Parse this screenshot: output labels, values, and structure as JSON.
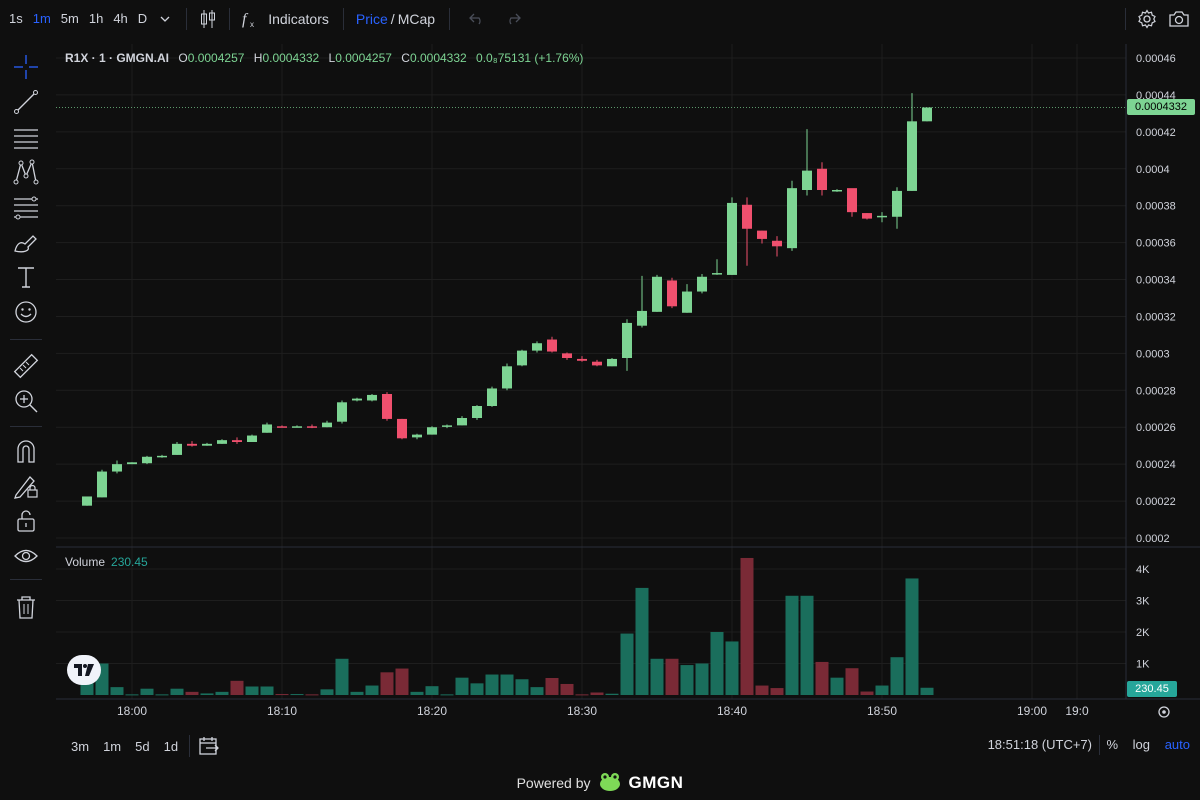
{
  "toolbar": {
    "timeframes": [
      "1s",
      "1m",
      "5m",
      "1h",
      "4h",
      "D"
    ],
    "active_timeframe": "1m",
    "indicators_label": "Indicators",
    "price_label": "Price",
    "separator": "/",
    "mcap_label": "MCap"
  },
  "legend": {
    "symbol": "R1X · 1 · GMGN.AI",
    "o_label": "O",
    "o_value": "0.0004257",
    "h_label": "H",
    "h_value": "0.0004332",
    "l_label": "L",
    "l_value": "0.0004257",
    "c_label": "C",
    "c_value": "0.0004332",
    "change": "0.0₈75131 (+1.76%)"
  },
  "volume_legend": {
    "label": "Volume",
    "value": "230.45"
  },
  "price_tag": "0.0004332",
  "volume_tag": "230.45",
  "bottom_toolbar": {
    "ranges": [
      "3m",
      "1m",
      "5d",
      "1d"
    ],
    "clock": "18:51:18 (UTC+7)",
    "percent_label": "%",
    "log_label": "log",
    "auto_label": "auto"
  },
  "footer": {
    "powered_by": "Powered by",
    "brand": "GMGN"
  },
  "colors": {
    "up": "#7dd493",
    "down": "#f0506e",
    "vol_up": "#1a6e5c",
    "vol_down": "#7a2a36",
    "grid": "#1e1e1e",
    "tag_up": "#7dd493",
    "vol_tag": "#26a69a"
  },
  "chart_data": {
    "type": "candlestick",
    "x_tick_labels": [
      "18:00",
      "18:10",
      "18:20",
      "18:30",
      "18:40",
      "18:50",
      "19:00",
      "19:0"
    ],
    "y_tick_labels": [
      "0.00046",
      "0.00044",
      "0.00042",
      "0.0004",
      "0.00038",
      "0.00036",
      "0.00034",
      "0.00032",
      "0.0003",
      "0.00028",
      "0.00026",
      "0.00024",
      "0.00022",
      "0.0002"
    ],
    "y_ticks": [
      0.00046,
      0.00044,
      0.00042,
      0.0004,
      0.00038,
      0.00036,
      0.00034,
      0.00032,
      0.0003,
      0.00028,
      0.00026,
      0.00024,
      0.00022,
      0.0002
    ],
    "vol_tick_labels": [
      "4K",
      "3K",
      "2K",
      "1K"
    ],
    "vol_ticks": [
      4000,
      3000,
      2000,
      1000
    ],
    "start_time": "17:57",
    "candles": [
      {
        "o": 0.0002175,
        "h": 0.0002225,
        "l": 0.0002175,
        "c": 0.0002225,
        "v": 400
      },
      {
        "o": 0.000222,
        "h": 0.000237,
        "l": 0.000222,
        "c": 0.000236,
        "v": 1000
      },
      {
        "o": 0.000236,
        "h": 0.000242,
        "l": 0.000235,
        "c": 0.00024,
        "v": 250
      },
      {
        "o": 0.00024,
        "h": 0.000241,
        "l": 0.00024,
        "c": 0.000241,
        "v": 20
      },
      {
        "o": 0.0002405,
        "h": 0.0002445,
        "l": 0.00024,
        "c": 0.000244,
        "v": 200
      },
      {
        "o": 0.000244,
        "h": 0.000245,
        "l": 0.0002435,
        "c": 0.0002445,
        "v": 20
      },
      {
        "o": 0.000245,
        "h": 0.000252,
        "l": 0.000245,
        "c": 0.000251,
        "v": 200
      },
      {
        "o": 0.000251,
        "h": 0.0002525,
        "l": 0.0002495,
        "c": 0.00025,
        "v": 100
      },
      {
        "o": 0.00025,
        "h": 0.0002515,
        "l": 0.00025,
        "c": 0.000251,
        "v": 50
      },
      {
        "o": 0.000251,
        "h": 0.0002535,
        "l": 0.000251,
        "c": 0.000253,
        "v": 100
      },
      {
        "o": 0.000253,
        "h": 0.0002545,
        "l": 0.000251,
        "c": 0.000252,
        "v": 450
      },
      {
        "o": 0.000252,
        "h": 0.000256,
        "l": 0.000252,
        "c": 0.0002555,
        "v": 270
      },
      {
        "o": 0.000257,
        "h": 0.0002625,
        "l": 0.000257,
        "c": 0.0002615,
        "v": 270
      },
      {
        "o": 0.0002605,
        "h": 0.000261,
        "l": 0.00026,
        "c": 0.00026,
        "v": 30
      },
      {
        "o": 0.00026,
        "h": 0.000261,
        "l": 0.00026,
        "c": 0.0002605,
        "v": 30
      },
      {
        "o": 0.0002605,
        "h": 0.0002615,
        "l": 0.0002595,
        "c": 0.00026,
        "v": 20
      },
      {
        "o": 0.00026,
        "h": 0.0002635,
        "l": 0.00026,
        "c": 0.0002625,
        "v": 180
      },
      {
        "o": 0.000263,
        "h": 0.0002745,
        "l": 0.000262,
        "c": 0.0002735,
        "v": 1150
      },
      {
        "o": 0.0002745,
        "h": 0.000276,
        "l": 0.000274,
        "c": 0.0002755,
        "v": 100
      },
      {
        "o": 0.0002745,
        "h": 0.000278,
        "l": 0.000274,
        "c": 0.0002775,
        "v": 300
      },
      {
        "o": 0.000278,
        "h": 0.000279,
        "l": 0.0002635,
        "c": 0.0002645,
        "v": 720
      },
      {
        "o": 0.0002645,
        "h": 0.0002645,
        "l": 0.0002535,
        "c": 0.000254,
        "v": 840
      },
      {
        "o": 0.0002545,
        "h": 0.0002565,
        "l": 0.0002535,
        "c": 0.000256,
        "v": 100
      },
      {
        "o": 0.000256,
        "h": 0.0002605,
        "l": 0.000256,
        "c": 0.00026,
        "v": 280
      },
      {
        "o": 0.0002605,
        "h": 0.0002615,
        "l": 0.0002595,
        "c": 0.000261,
        "v": 20
      },
      {
        "o": 0.000261,
        "h": 0.000266,
        "l": 0.000261,
        "c": 0.000265,
        "v": 550
      },
      {
        "o": 0.000265,
        "h": 0.000272,
        "l": 0.000264,
        "c": 0.0002715,
        "v": 370
      },
      {
        "o": 0.0002715,
        "h": 0.000282,
        "l": 0.000271,
        "c": 0.000281,
        "v": 650
      },
      {
        "o": 0.000281,
        "h": 0.0002945,
        "l": 0.00028,
        "c": 0.000293,
        "v": 650
      },
      {
        "o": 0.0002935,
        "h": 0.000302,
        "l": 0.000293,
        "c": 0.0003015,
        "v": 500
      },
      {
        "o": 0.0003015,
        "h": 0.0003065,
        "l": 0.0003005,
        "c": 0.0003055,
        "v": 250
      },
      {
        "o": 0.0003075,
        "h": 0.000309,
        "l": 0.0003005,
        "c": 0.000301,
        "v": 540
      },
      {
        "o": 0.0003,
        "h": 0.0003005,
        "l": 0.0002965,
        "c": 0.0002975,
        "v": 350
      },
      {
        "o": 0.000297,
        "h": 0.0002985,
        "l": 0.0002955,
        "c": 0.000296,
        "v": 20
      },
      {
        "o": 0.0002955,
        "h": 0.0002965,
        "l": 0.000293,
        "c": 0.0002935,
        "v": 80
      },
      {
        "o": 0.000293,
        "h": 0.0002975,
        "l": 0.000293,
        "c": 0.000297,
        "v": 40
      },
      {
        "o": 0.0002975,
        "h": 0.0003185,
        "l": 0.0002905,
        "c": 0.0003165,
        "v": 1950
      },
      {
        "o": 0.000315,
        "h": 0.000342,
        "l": 0.000314,
        "c": 0.000323,
        "v": 3400
      },
      {
        "o": 0.0003225,
        "h": 0.0003425,
        "l": 0.0003225,
        "c": 0.0003415,
        "v": 1150
      },
      {
        "o": 0.0003395,
        "h": 0.000341,
        "l": 0.0003245,
        "c": 0.0003255,
        "v": 1150
      },
      {
        "o": 0.000322,
        "h": 0.0003375,
        "l": 0.000322,
        "c": 0.0003335,
        "v": 950
      },
      {
        "o": 0.0003335,
        "h": 0.000343,
        "l": 0.0003325,
        "c": 0.0003415,
        "v": 1000
      },
      {
        "o": 0.000343,
        "h": 0.000351,
        "l": 0.0003425,
        "c": 0.0003435,
        "v": 2000
      },
      {
        "o": 0.0003425,
        "h": 0.0003845,
        "l": 0.0003425,
        "c": 0.0003815,
        "v": 1700
      },
      {
        "o": 0.0003805,
        "h": 0.0003845,
        "l": 0.0003475,
        "c": 0.0003675,
        "v": 4350
      },
      {
        "o": 0.0003665,
        "h": 0.0003665,
        "l": 0.0003595,
        "c": 0.000362,
        "v": 300
      },
      {
        "o": 0.000361,
        "h": 0.0003635,
        "l": 0.0003525,
        "c": 0.000358,
        "v": 220
      },
      {
        "o": 0.000357,
        "h": 0.0003935,
        "l": 0.0003555,
        "c": 0.0003895,
        "v": 3150
      },
      {
        "o": 0.0003885,
        "h": 0.0004215,
        "l": 0.0003855,
        "c": 0.000399,
        "v": 3150
      },
      {
        "o": 0.0004,
        "h": 0.0004035,
        "l": 0.0003855,
        "c": 0.0003885,
        "v": 1050
      },
      {
        "o": 0.000388,
        "h": 0.000389,
        "l": 0.0003875,
        "c": 0.0003885,
        "v": 550
      },
      {
        "o": 0.0003895,
        "h": 0.000389,
        "l": 0.000374,
        "c": 0.0003765,
        "v": 850
      },
      {
        "o": 0.000376,
        "h": 0.000376,
        "l": 0.0003725,
        "c": 0.000373,
        "v": 110
      },
      {
        "o": 0.0003745,
        "h": 0.0003765,
        "l": 0.000371,
        "c": 0.0003745,
        "v": 300
      },
      {
        "o": 0.000374,
        "h": 0.00039,
        "l": 0.0003675,
        "c": 0.000388,
        "v": 1200
      },
      {
        "o": 0.000388,
        "h": 0.000441,
        "l": 0.000388,
        "c": 0.0004257,
        "v": 3700
      },
      {
        "o": 0.0004257,
        "h": 0.0004332,
        "l": 0.0004257,
        "c": 0.0004332,
        "v": 230
      }
    ]
  }
}
